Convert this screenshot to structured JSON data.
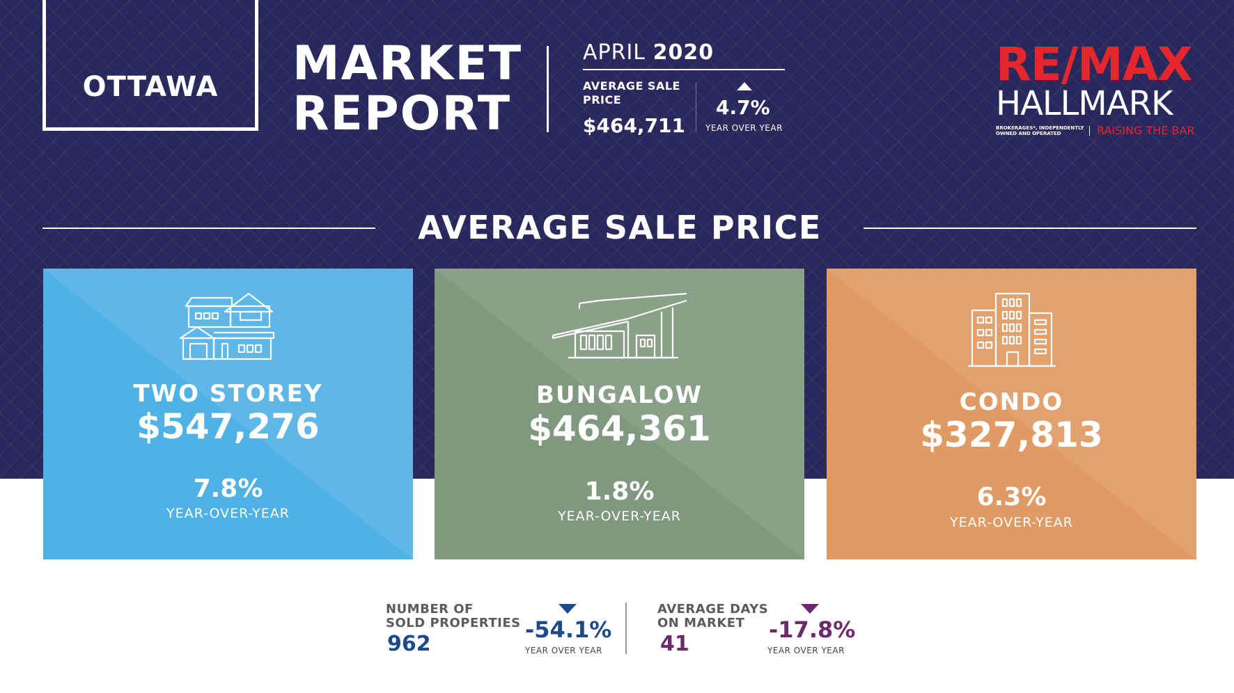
{
  "header": {
    "city": "OTTAWA",
    "title_line1": "MARKET",
    "title_line2": "REPORT",
    "month": "APRIL",
    "year": "2020",
    "avg_sale_label": "AVERAGE SALE PRICE",
    "avg_sale_value": "$464,711",
    "avg_sale_change": "4.7%",
    "avg_sale_change_label": "YEAR OVER YEAR",
    "avg_sale_trend": "up"
  },
  "logo": {
    "brand": "RE/MAX",
    "sub": "HALLMARK",
    "fine_print": "BROKERAGES*, INDEPENDENTLY OWNED AND OPERATED",
    "tagline": "RAISING THE BAR"
  },
  "section": {
    "heading": "AVERAGE SALE PRICE"
  },
  "cards": [
    {
      "type": "TWO STOREY",
      "price": "$547,276",
      "change": "7.8%",
      "change_label": "YEAR-OVER-YEAR",
      "color": "#50b1e4",
      "icon": "two-storey-house-icon"
    },
    {
      "type": "BUNGALOW",
      "price": "$464,361",
      "change": "1.8%",
      "change_label": "YEAR-OVER-YEAR",
      "color": "#80987f",
      "icon": "bungalow-icon"
    },
    {
      "type": "CONDO",
      "price": "$327,813",
      "change": "6.3%",
      "change_label": "YEAR-OVER-YEAR",
      "color": "#e09a63",
      "icon": "condo-building-icon"
    }
  ],
  "stats": {
    "sold": {
      "label_line1": "NUMBER OF",
      "label_line2": "SOLD PROPERTIES",
      "value": "962",
      "change": "-54.1%",
      "change_label": "YEAR OVER YEAR",
      "color": "#1d4a8c",
      "trend": "down"
    },
    "days": {
      "label_line1": "AVERAGE DAYS",
      "label_line2": "ON MARKET",
      "value": "41",
      "change": "-17.8%",
      "change_label": "YEAR OVER YEAR",
      "color": "#6b2a6b",
      "trend": "down"
    }
  },
  "colors": {
    "navy": "#28285c",
    "brand_red": "#e4262d"
  }
}
